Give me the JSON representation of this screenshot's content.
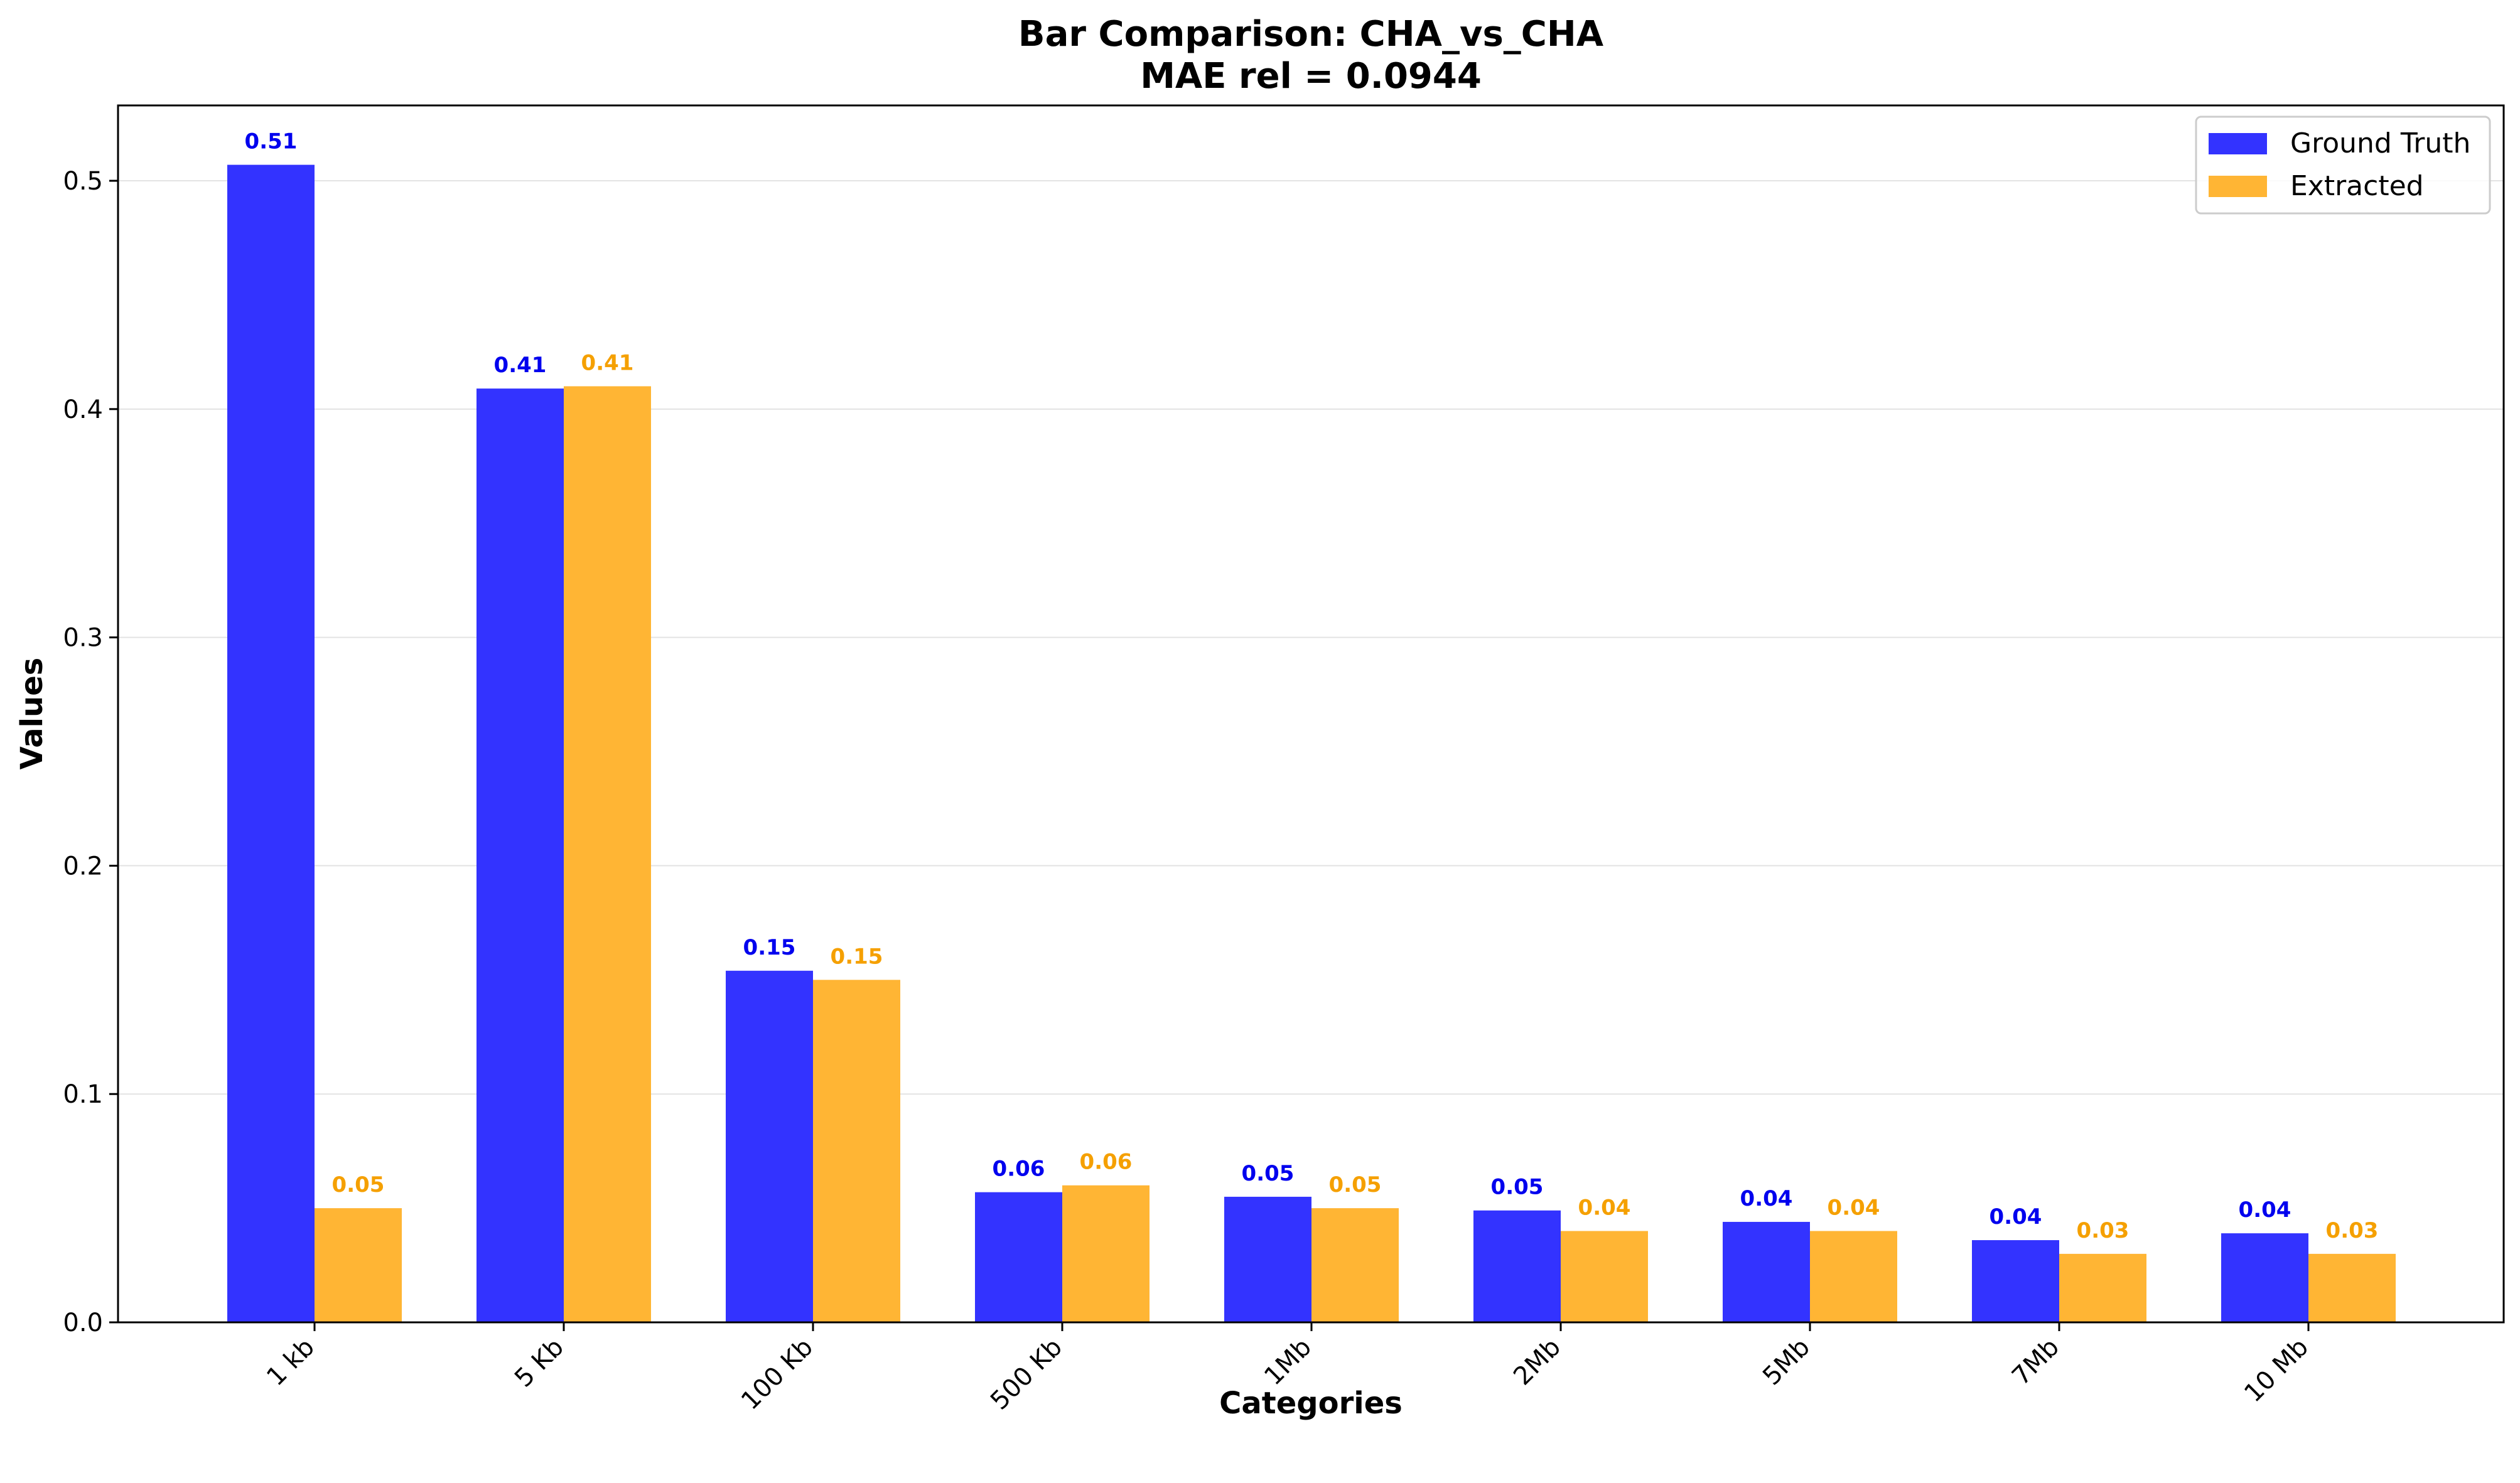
{
  "chart_data": {
    "type": "bar",
    "title": "Bar Comparison: CHA_vs_CHA",
    "subtitle": "MAE rel = 0.0944",
    "xlabel": "Categories",
    "ylabel": "Values",
    "ylim": [
      0,
      0.533
    ],
    "yticks": [
      "0.0",
      "0.1",
      "0.2",
      "0.3",
      "0.4",
      "0.5"
    ],
    "grid": "horizontal",
    "legend_position": "top-right",
    "categories": [
      "1 kb",
      "5 Kb",
      "100 Kb",
      "500 Kb",
      "1Mb",
      "2Mb",
      "5Mb",
      "7Mb",
      "10 Mb"
    ],
    "series": [
      {
        "name": "Ground Truth",
        "color": "#3333ff",
        "label_color": "#0000ee",
        "values": [
          0.507,
          0.409,
          0.154,
          0.057,
          0.055,
          0.049,
          0.044,
          0.036,
          0.039
        ],
        "labels": [
          "0.51",
          "0.41",
          "0.15",
          "0.06",
          "0.05",
          "0.05",
          "0.04",
          "0.04",
          "0.04"
        ]
      },
      {
        "name": "Extracted",
        "color": "#ffb534",
        "label_color": "#f5a000",
        "values": [
          0.05,
          0.41,
          0.15,
          0.06,
          0.05,
          0.04,
          0.04,
          0.03,
          0.03
        ],
        "labels": [
          "0.05",
          "0.41",
          "0.15",
          "0.06",
          "0.05",
          "0.04",
          "0.04",
          "0.03",
          "0.03"
        ]
      }
    ]
  }
}
